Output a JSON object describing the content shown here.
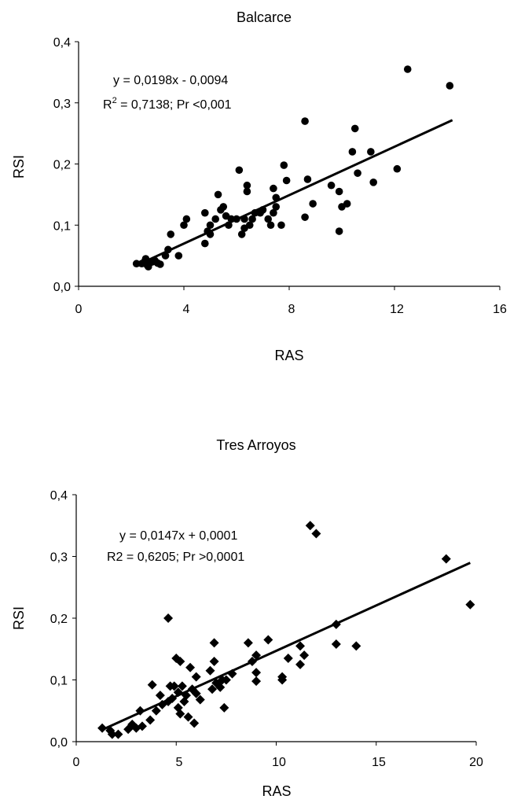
{
  "chart_data": [
    {
      "type": "scatter",
      "title": "Balcarce",
      "xlabel": "RAS",
      "ylabel": "RSI",
      "xlim": [
        0,
        16
      ],
      "ylim": [
        0,
        0.4
      ],
      "xticks": [
        "0",
        "4",
        "8",
        "12",
        "16"
      ],
      "yticks": [
        "0,0",
        "0,1",
        "0,2",
        "0,3",
        "0,4"
      ],
      "marker": "circle",
      "annotation": {
        "line1": "y = 0,0198x - 0,0094",
        "line2_prefix": "R",
        "line2_sup": "2",
        "line2_rest": " = 0,7138; Pr <0,001"
      },
      "trendline": {
        "slope": 0.0198,
        "intercept": -0.0094,
        "x_range": [
          2.2,
          14.2
        ]
      },
      "points": [
        [
          2.2,
          0.037
        ],
        [
          2.4,
          0.037
        ],
        [
          2.5,
          0.04
        ],
        [
          2.55,
          0.045
        ],
        [
          2.6,
          0.035
        ],
        [
          2.65,
          0.032
        ],
        [
          2.7,
          0.038
        ],
        [
          2.8,
          0.04
        ],
        [
          2.9,
          0.042
        ],
        [
          3.0,
          0.038
        ],
        [
          3.1,
          0.036
        ],
        [
          3.3,
          0.05
        ],
        [
          3.4,
          0.06
        ],
        [
          3.5,
          0.085
        ],
        [
          3.8,
          0.05
        ],
        [
          4.0,
          0.1
        ],
        [
          4.1,
          0.11
        ],
        [
          4.8,
          0.07
        ],
        [
          4.8,
          0.12
        ],
        [
          4.9,
          0.09
        ],
        [
          5.0,
          0.085
        ],
        [
          5.0,
          0.1
        ],
        [
          5.2,
          0.11
        ],
        [
          5.3,
          0.15
        ],
        [
          5.4,
          0.125
        ],
        [
          5.5,
          0.13
        ],
        [
          5.6,
          0.115
        ],
        [
          5.7,
          0.1
        ],
        [
          5.8,
          0.11
        ],
        [
          6.0,
          0.11
        ],
        [
          6.1,
          0.19
        ],
        [
          6.2,
          0.085
        ],
        [
          6.3,
          0.095
        ],
        [
          6.3,
          0.11
        ],
        [
          6.4,
          0.165
        ],
        [
          6.4,
          0.155
        ],
        [
          6.5,
          0.1
        ],
        [
          6.6,
          0.11
        ],
        [
          6.7,
          0.12
        ],
        [
          6.9,
          0.12
        ],
        [
          7.0,
          0.125
        ],
        [
          7.2,
          0.11
        ],
        [
          7.3,
          0.1
        ],
        [
          7.4,
          0.12
        ],
        [
          7.4,
          0.16
        ],
        [
          7.5,
          0.145
        ],
        [
          7.5,
          0.13
        ],
        [
          7.7,
          0.1
        ],
        [
          7.8,
          0.198
        ],
        [
          7.9,
          0.173
        ],
        [
          8.6,
          0.27
        ],
        [
          8.6,
          0.113
        ],
        [
          8.7,
          0.175
        ],
        [
          8.9,
          0.135
        ],
        [
          9.6,
          0.165
        ],
        [
          9.9,
          0.155
        ],
        [
          9.9,
          0.09
        ],
        [
          10.0,
          0.13
        ],
        [
          10.2,
          0.135
        ],
        [
          10.4,
          0.22
        ],
        [
          10.5,
          0.258
        ],
        [
          10.6,
          0.185
        ],
        [
          11.1,
          0.22
        ],
        [
          11.2,
          0.17
        ],
        [
          12.1,
          0.192
        ],
        [
          12.5,
          0.355
        ],
        [
          14.1,
          0.328
        ]
      ]
    },
    {
      "type": "scatter",
      "title": "Tres Arroyos",
      "xlabel": "RAS",
      "ylabel": "RSI",
      "xlim": [
        0,
        20
      ],
      "ylim": [
        0,
        0.4
      ],
      "xticks": [
        "0",
        "5",
        "10",
        "15",
        "20"
      ],
      "yticks": [
        "0,0",
        "0,1",
        "0,2",
        "0,3",
        "0,4"
      ],
      "marker": "diamond",
      "annotation": {
        "line1": "y = 0,0147x + 0,0001",
        "line2": "R2 = 0,6205; Pr >0,0001"
      },
      "trendline": {
        "slope": 0.0147,
        "intercept": 0.0001,
        "x_range": [
          1.3,
          19.7
        ]
      },
      "points": [
        [
          1.3,
          0.022
        ],
        [
          1.7,
          0.018
        ],
        [
          1.8,
          0.012
        ],
        [
          2.1,
          0.012
        ],
        [
          2.6,
          0.02
        ],
        [
          2.8,
          0.028
        ],
        [
          3.0,
          0.022
        ],
        [
          3.2,
          0.05
        ],
        [
          3.3,
          0.025
        ],
        [
          3.7,
          0.035
        ],
        [
          3.8,
          0.092
        ],
        [
          4.0,
          0.05
        ],
        [
          4.2,
          0.075
        ],
        [
          4.3,
          0.06
        ],
        [
          4.6,
          0.2
        ],
        [
          4.6,
          0.065
        ],
        [
          4.7,
          0.09
        ],
        [
          4.8,
          0.07
        ],
        [
          4.9,
          0.09
        ],
        [
          5.0,
          0.135
        ],
        [
          5.1,
          0.055
        ],
        [
          5.1,
          0.08
        ],
        [
          5.2,
          0.045
        ],
        [
          5.2,
          0.13
        ],
        [
          5.3,
          0.09
        ],
        [
          5.4,
          0.065
        ],
        [
          5.5,
          0.075
        ],
        [
          5.6,
          0.04
        ],
        [
          5.7,
          0.12
        ],
        [
          5.8,
          0.085
        ],
        [
          5.9,
          0.03
        ],
        [
          6.0,
          0.105
        ],
        [
          6.0,
          0.078
        ],
        [
          6.2,
          0.068
        ],
        [
          6.7,
          0.115
        ],
        [
          6.8,
          0.085
        ],
        [
          6.9,
          0.16
        ],
        [
          6.9,
          0.13
        ],
        [
          7.0,
          0.095
        ],
        [
          7.2,
          0.088
        ],
        [
          7.3,
          0.1
        ],
        [
          7.4,
          0.055
        ],
        [
          7.5,
          0.1
        ],
        [
          7.8,
          0.11
        ],
        [
          8.6,
          0.16
        ],
        [
          8.8,
          0.13
        ],
        [
          9.0,
          0.14
        ],
        [
          9.0,
          0.098
        ],
        [
          9.0,
          0.112
        ],
        [
          9.6,
          0.165
        ],
        [
          10.3,
          0.105
        ],
        [
          10.3,
          0.1
        ],
        [
          10.6,
          0.135
        ],
        [
          11.2,
          0.155
        ],
        [
          11.2,
          0.125
        ],
        [
          11.4,
          0.14
        ],
        [
          11.7,
          0.35
        ],
        [
          12.0,
          0.337
        ],
        [
          13.0,
          0.19
        ],
        [
          13.0,
          0.158
        ],
        [
          14.0,
          0.155
        ],
        [
          18.5,
          0.296
        ],
        [
          19.7,
          0.222
        ]
      ]
    }
  ]
}
